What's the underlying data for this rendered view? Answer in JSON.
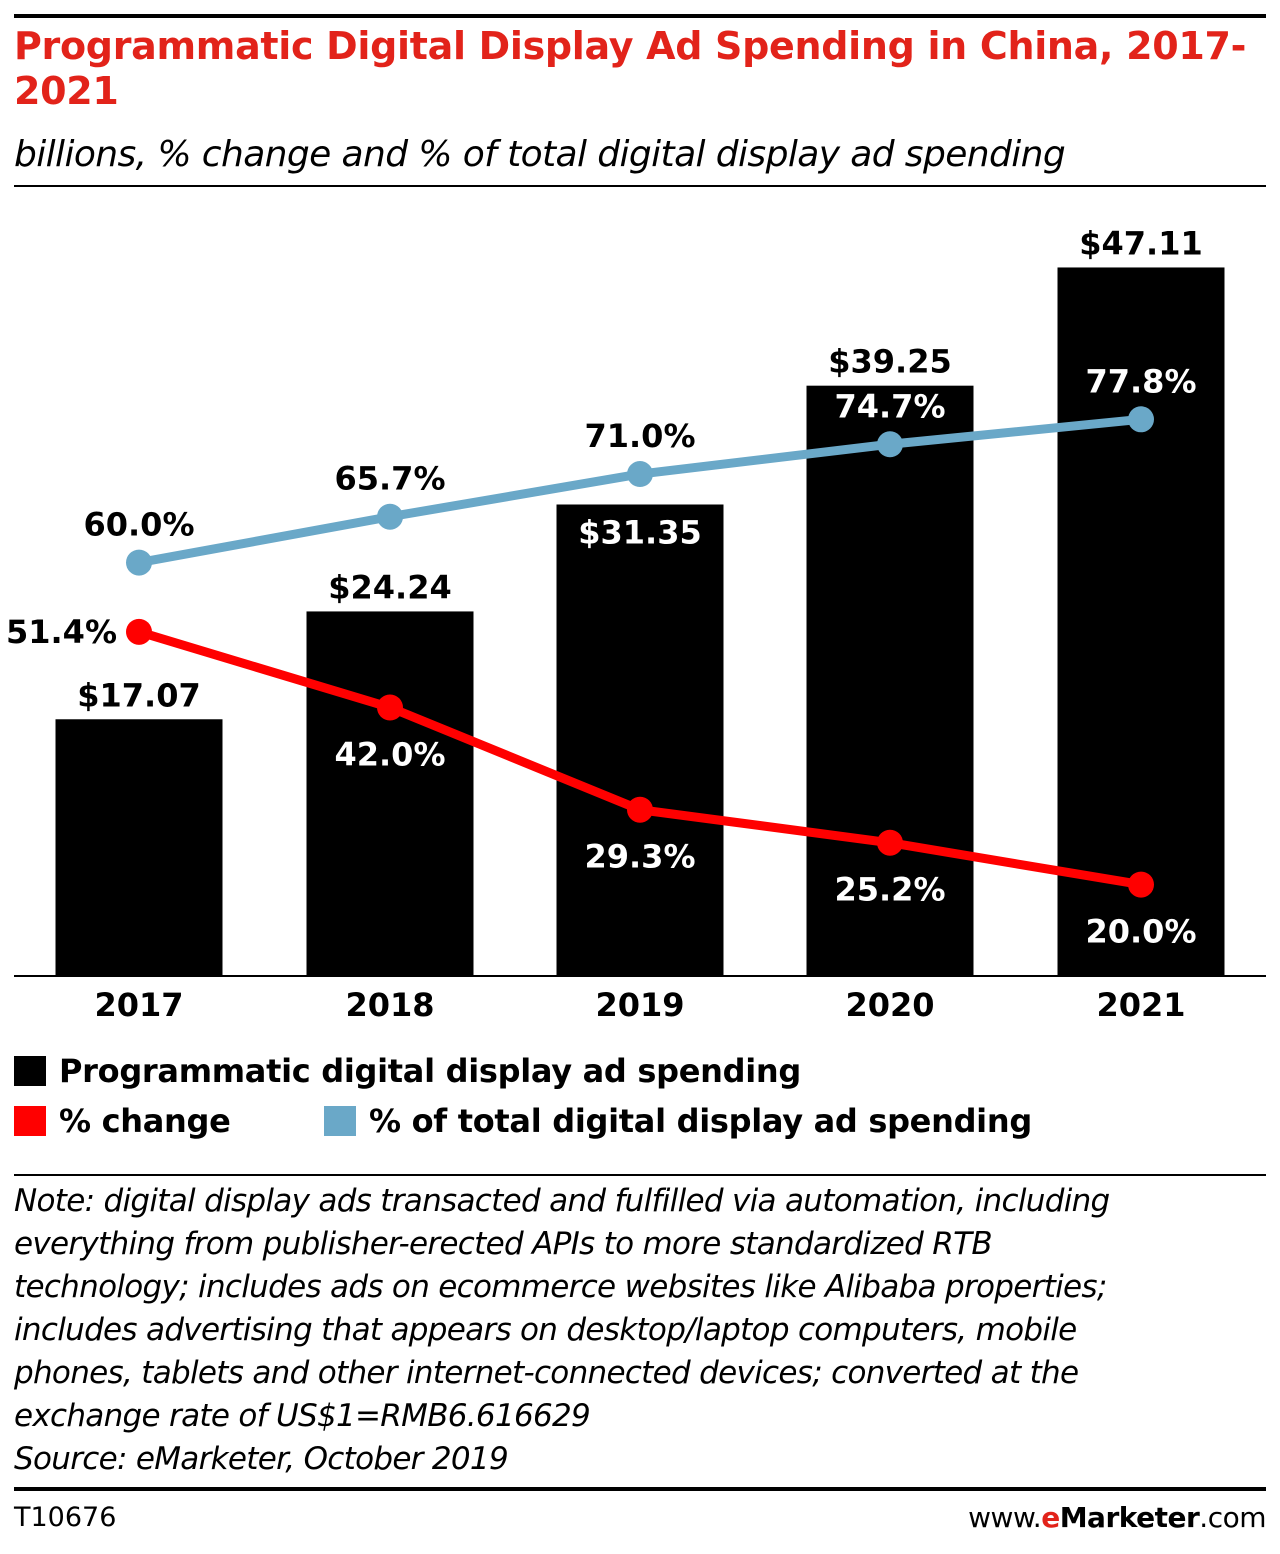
{
  "header": {
    "title": "Programmatic Digital Display Ad Spending in China, 2017-2021",
    "subtitle": "billions, % change and % of total digital display ad spending"
  },
  "colors": {
    "title": "#e2231a",
    "bars": "#000000",
    "change_line": "#ff0000",
    "share_line": "#6aa8c8"
  },
  "chart_data": {
    "type": "bar",
    "title": "Programmatic Digital Display Ad Spending in China, 2017-2021",
    "subtitle": "billions, % change and % of total digital display ad spending",
    "categories": [
      "2017",
      "2018",
      "2019",
      "2020",
      "2021"
    ],
    "series": [
      {
        "name": "Programmatic digital display ad spending",
        "type": "bar",
        "values": [
          17.07,
          24.24,
          31.35,
          39.25,
          47.11
        ],
        "labels": [
          "$17.07",
          "$24.24",
          "$31.35",
          "$39.25",
          "$47.11"
        ]
      },
      {
        "name": "% change",
        "type": "line",
        "values": [
          51.4,
          42.0,
          29.3,
          25.2,
          20.0
        ],
        "labels": [
          "51.4%",
          "42.0%",
          "29.3%",
          "25.2%",
          "20.0%"
        ]
      },
      {
        "name": "% of total digital display ad spending",
        "type": "line",
        "values": [
          60.0,
          65.7,
          71.0,
          74.7,
          77.8
        ],
        "labels": [
          "60.0%",
          "65.7%",
          "71.0%",
          "74.7%",
          "77.8%"
        ]
      }
    ],
    "legend": "bottom",
    "grid": false
  },
  "legend": {
    "bars": "Programmatic digital display ad spending",
    "change": "% change",
    "share": "% of total digital display ad spending"
  },
  "note": [
    "Note: digital display ads transacted and fulfilled via automation, including",
    "everything from publisher-erected APIs to more standardized RTB",
    "technology; includes ads on ecommerce websites like Alibaba properties;",
    "includes advertising that appears on desktop/laptop computers, mobile",
    "phones, tablets and other internet-connected devices; converted at the",
    "exchange rate of US$1=RMB6.616629",
    "Source: eMarketer, October 2019"
  ],
  "footer": {
    "chart_id": "T10676",
    "brand_prefix": "www.",
    "brand_e": "e",
    "brand_name": "Marketer",
    "brand_suffix": ".com"
  }
}
